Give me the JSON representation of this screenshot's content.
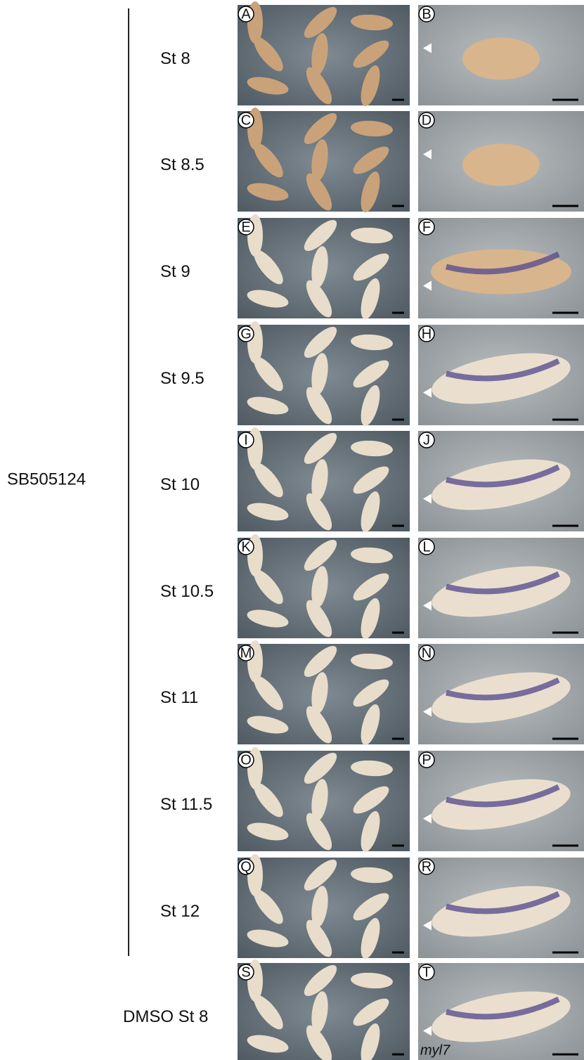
{
  "group_label": "SB505124",
  "rows": [
    {
      "stage": "St 8",
      "panels": [
        "A",
        "B"
      ]
    },
    {
      "stage": "St 8.5",
      "panels": [
        "C",
        "D"
      ]
    },
    {
      "stage": "St 9",
      "panels": [
        "E",
        "F"
      ]
    },
    {
      "stage": "St 9.5",
      "panels": [
        "G",
        "H"
      ]
    },
    {
      "stage": "St 10",
      "panels": [
        "I",
        "J"
      ]
    },
    {
      "stage": "St 10.5",
      "panels": [
        "K",
        "L"
      ]
    },
    {
      "stage": "St 11",
      "panels": [
        "M",
        "N"
      ]
    },
    {
      "stage": "St 11.5",
      "panels": [
        "O",
        "P"
      ]
    },
    {
      "stage": "St 12",
      "panels": [
        "Q",
        "R"
      ]
    },
    {
      "stage": "DMSO St 8",
      "panels": [
        "S",
        "T"
      ]
    }
  ],
  "gene_label": "myl7"
}
